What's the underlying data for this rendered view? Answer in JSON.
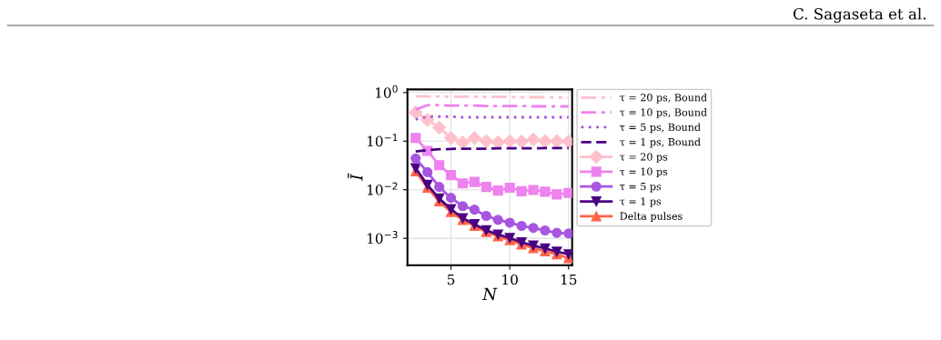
{
  "chart_data": {
    "type": "line",
    "x": [
      2,
      3,
      4,
      5,
      6,
      7,
      8,
      9,
      10,
      11,
      12,
      13,
      14,
      15
    ],
    "xlabel": "N",
    "ylabel": "Ī",
    "xlim": [
      1.3,
      15.3
    ],
    "xticks": [
      5,
      10,
      15
    ],
    "ylim": [
      0.00028,
      1.16
    ],
    "log": true,
    "yticks": [
      {
        "value": 0.001,
        "label": "10$^{−3}$"
      },
      {
        "value": 0.01,
        "label": "10$^{−2}$"
      },
      {
        "value": 0.1,
        "label": "10$^{−1}$"
      },
      {
        "value": 1,
        "label": "10$^{0}$"
      }
    ],
    "grid": true,
    "legend": "right",
    "annotations": [
      "C. Sagaseta et al."
    ],
    "series": [
      {
        "name": "τ = 20 ps, Bound",
        "color": "#ffc0cb",
        "line_style": "dashdotdot",
        "marker": "none",
        "values": [
          0.84,
          0.83,
          0.83,
          0.82,
          0.82,
          0.82,
          0.81,
          0.81,
          0.81,
          0.8,
          0.8,
          0.8,
          0.79,
          0.79
        ]
      },
      {
        "name": "τ = 10 ps, Bound",
        "color": "#ee82ee",
        "line_style": "dashdot",
        "marker": "none",
        "values": [
          0.45,
          0.55,
          0.55,
          0.54,
          0.54,
          0.54,
          0.53,
          0.53,
          0.53,
          0.53,
          0.52,
          0.52,
          0.52,
          0.52
        ]
      },
      {
        "name": "τ = 5 ps, Bound",
        "color": "#a855e0",
        "line_style": "dotted",
        "marker": "none",
        "values": [
          0.28,
          0.32,
          0.32,
          0.32,
          0.31,
          0.31,
          0.31,
          0.31,
          0.31,
          0.31,
          0.31,
          0.31,
          0.31,
          0.31
        ]
      },
      {
        "name": "τ = 1 ps, Bound",
        "color": "#4b0082",
        "line_style": "dashed",
        "marker": "none",
        "values": [
          0.061,
          0.065,
          0.068,
          0.069,
          0.07,
          0.07,
          0.07,
          0.071,
          0.071,
          0.071,
          0.071,
          0.072,
          0.072,
          0.072
        ]
      },
      {
        "name": "τ = 20 ps",
        "color": "#ffc0cb",
        "line_style": "solid",
        "marker": "diamond",
        "values": [
          0.39,
          0.275,
          0.19,
          0.116,
          0.094,
          0.116,
          0.1,
          0.094,
          0.1,
          0.098,
          0.108,
          0.1,
          0.1,
          0.098
        ]
      },
      {
        "name": "τ = 10 ps",
        "color": "#ee82ee",
        "line_style": "solid",
        "marker": "square",
        "values": [
          0.116,
          0.063,
          0.032,
          0.02,
          0.0135,
          0.0145,
          0.0114,
          0.0096,
          0.011,
          0.0093,
          0.0099,
          0.0091,
          0.008,
          0.0086
        ]
      },
      {
        "name": "τ = 5 ps",
        "color": "#a855e0",
        "line_style": "solid",
        "marker": "circle",
        "values": [
          0.044,
          0.023,
          0.0114,
          0.0068,
          0.0046,
          0.0039,
          0.0029,
          0.0024,
          0.0021,
          0.0018,
          0.00164,
          0.00145,
          0.0013,
          0.00126
        ]
      },
      {
        "name": "τ = 1 ps",
        "color": "#4b0082",
        "line_style": "solid",
        "marker": "triangle_down",
        "values": [
          0.0277,
          0.0126,
          0.0066,
          0.004,
          0.0026,
          0.00195,
          0.00146,
          0.0012,
          0.00102,
          0.00083,
          0.00071,
          0.00062,
          0.00053,
          0.00047
        ]
      },
      {
        "name": "Delta pulses",
        "color": "#ff6347",
        "line_style": "solid",
        "marker": "triangle",
        "values": [
          0.024,
          0.011,
          0.0058,
          0.0035,
          0.0024,
          0.0018,
          0.00135,
          0.0011,
          0.00092,
          0.00075,
          0.00063,
          0.00054,
          0.00047,
          0.00039
        ]
      }
    ]
  }
}
